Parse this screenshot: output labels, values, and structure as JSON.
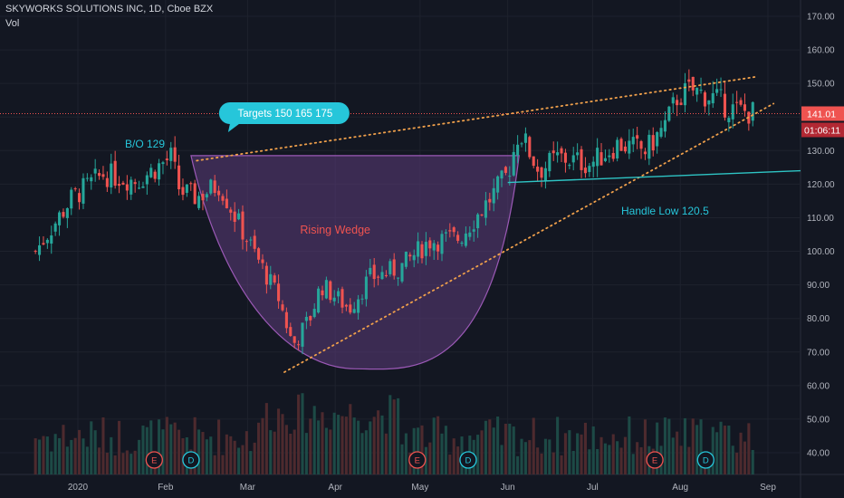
{
  "header": {
    "symbol_line": "SKYWORKS SOLUTIONS INC, 1D, Cboe BZX",
    "vol_label": "Vol"
  },
  "colors": {
    "background": "#131722",
    "up_candle": "#26a69a",
    "down_candle": "#ef5350",
    "cup_fill": "#5c3c7a",
    "cup_stroke": "#9b59b6",
    "wedge_line": "#f0a04b",
    "handle_line": "#2ec4c4",
    "price_line": "#ef5350",
    "label_cyan": "#26c6da",
    "label_red": "#ef5350"
  },
  "price_badge": {
    "price": "141.01",
    "countdown": "01:06:11"
  },
  "annotations": {
    "targets": "Targets  150  165  175",
    "breakout": "B/O 129",
    "rising_wedge": "Rising Wedge",
    "handle_low": "Handle Low 120.5"
  },
  "event_markers": [
    {
      "label": "E",
      "type": "earnings",
      "date": "2020-01-28"
    },
    {
      "label": "D",
      "type": "dividend",
      "date": "2020-02-10"
    },
    {
      "label": "E",
      "type": "earnings",
      "date": "2020-04-30"
    },
    {
      "label": "D",
      "type": "dividend",
      "date": "2020-05-18"
    },
    {
      "label": "E",
      "type": "earnings",
      "date": "2020-07-23"
    },
    {
      "label": "D",
      "type": "dividend",
      "date": "2020-08-10"
    }
  ],
  "chart_data": {
    "type": "candlestick",
    "title": "SKYWORKS SOLUTIONS INC, 1D, Cboe BZX",
    "y_ticks": [
      "170.00",
      "160.00",
      "150.00",
      "140.00",
      "130.00",
      "120.00",
      "110.00",
      "100.00",
      "90.00",
      "80.00",
      "70.00",
      "60.00",
      "50.00",
      "40.00"
    ],
    "x_ticks": [
      "2020",
      "Feb",
      "Mar",
      "Apr",
      "May",
      "Jun",
      "Jul",
      "Aug",
      "Sep"
    ],
    "ylim": [
      35,
      173
    ],
    "current_price": 141.01,
    "grid": true,
    "volume_shown": true,
    "close_path": [
      {
        "date": "2019-12-17",
        "close": 100
      },
      {
        "date": "2019-12-30",
        "close": 116
      },
      {
        "date": "2020-01-10",
        "close": 123
      },
      {
        "date": "2020-01-22",
        "close": 121
      },
      {
        "date": "2020-02-03",
        "close": 128
      },
      {
        "date": "2020-02-06",
        "close": 118
      },
      {
        "date": "2020-02-12",
        "close": 116
      },
      {
        "date": "2020-02-20",
        "close": 120
      },
      {
        "date": "2020-02-27",
        "close": 108
      },
      {
        "date": "2020-03-05",
        "close": 97
      },
      {
        "date": "2020-03-12",
        "close": 86
      },
      {
        "date": "2020-03-17",
        "close": 72
      },
      {
        "date": "2020-03-23",
        "close": 80
      },
      {
        "date": "2020-03-27",
        "close": 90
      },
      {
        "date": "2020-04-06",
        "close": 83
      },
      {
        "date": "2020-04-13",
        "close": 92
      },
      {
        "date": "2020-04-24",
        "close": 95
      },
      {
        "date": "2020-05-04",
        "close": 103
      },
      {
        "date": "2020-05-15",
        "close": 104
      },
      {
        "date": "2020-05-26",
        "close": 116
      },
      {
        "date": "2020-06-01",
        "close": 123
      },
      {
        "date": "2020-06-05",
        "close": 136
      },
      {
        "date": "2020-06-12",
        "close": 124
      },
      {
        "date": "2020-06-19",
        "close": 128
      },
      {
        "date": "2020-06-30",
        "close": 126
      },
      {
        "date": "2020-07-10",
        "close": 132
      },
      {
        "date": "2020-07-20",
        "close": 130
      },
      {
        "date": "2020-07-27",
        "close": 138
      },
      {
        "date": "2020-07-31",
        "close": 146
      },
      {
        "date": "2020-08-05",
        "close": 148
      },
      {
        "date": "2020-08-12",
        "close": 146
      },
      {
        "date": "2020-08-20",
        "close": 142
      },
      {
        "date": "2020-08-28",
        "close": 141
      }
    ],
    "cup_top": 128.5,
    "cup_bottom": 65,
    "handle_low": 120.5,
    "wedge_upper": [
      {
        "date": "2020-02-12",
        "price": 127
      },
      {
        "date": "2020-08-28",
        "price": 152
      }
    ],
    "wedge_lower": [
      {
        "date": "2020-03-14",
        "price": 64
      },
      {
        "date": "2020-09-03",
        "price": 144
      }
    ],
    "handle_line": [
      {
        "date": "2020-06-01",
        "price": 120.5
      },
      {
        "date": "2020-09-30",
        "price": 124
      }
    ]
  }
}
